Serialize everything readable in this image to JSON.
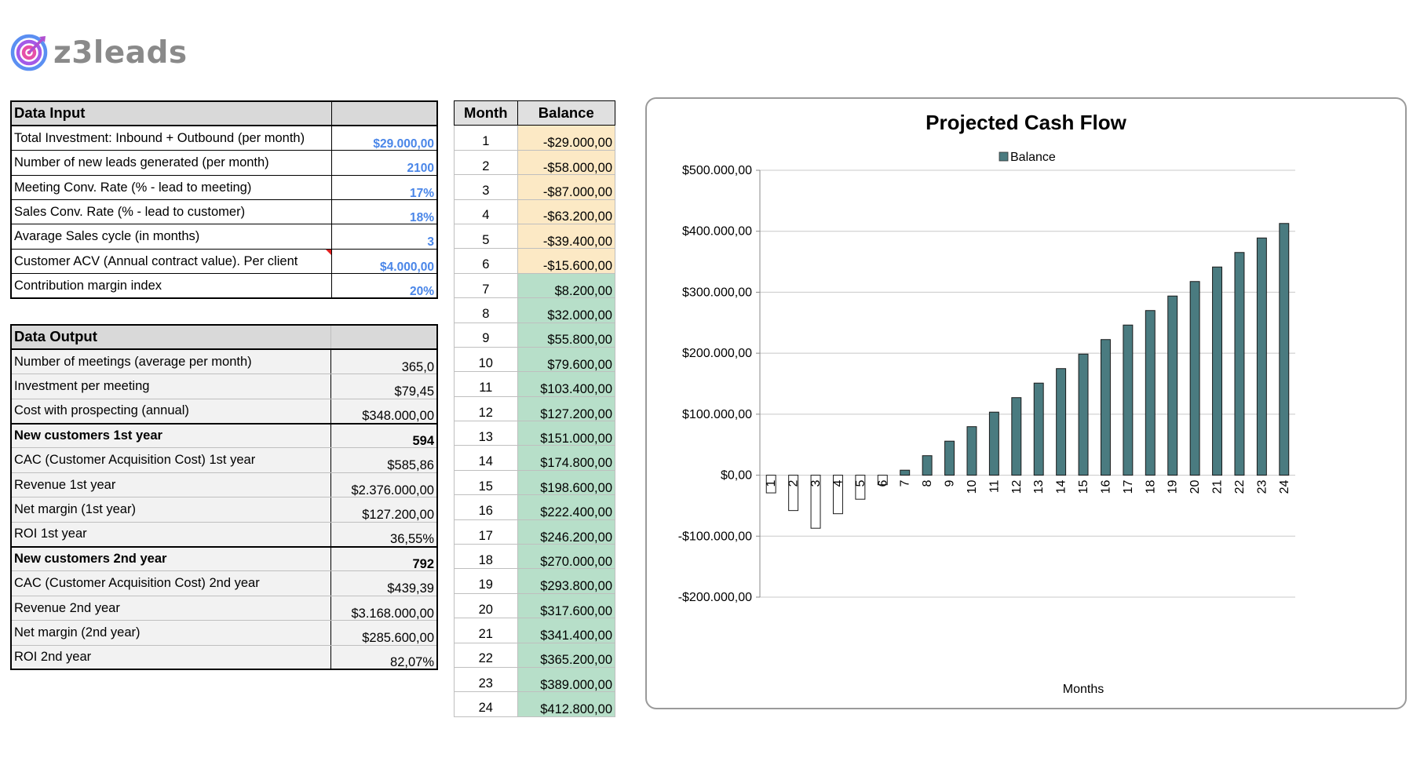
{
  "logo": {
    "text": "z3leads",
    "icon": "target-icon"
  },
  "data_input": {
    "header": "Data Input",
    "rows": [
      {
        "label": "Total Investment: Inbound + Outbound (per month)",
        "value": "$29.000,00"
      },
      {
        "label": "Number of new leads generated (per month)",
        "value": "2100"
      },
      {
        "label": "Meeting Conv. Rate (% - lead to meeting)",
        "value": "17%"
      },
      {
        "label": "Sales Conv. Rate (% - lead to customer)",
        "value": "18%"
      },
      {
        "label": "Avarage Sales cycle (in months)",
        "value": "3"
      },
      {
        "label": "Customer ACV (Annual contract value). Per client",
        "value": "$4.000,00"
      },
      {
        "label": "Contribution margin index",
        "value": "20%"
      }
    ]
  },
  "data_output": {
    "header": "Data Output",
    "rows": [
      {
        "label": "Number of meetings (average per month)",
        "value": "365,0"
      },
      {
        "label": "Investment per meeting",
        "value": "$79,45"
      },
      {
        "label": "Cost with prospecting (annual)",
        "value": "$348.000,00"
      },
      {
        "label": "New customers 1st year",
        "value": "594"
      },
      {
        "label": "CAC (Customer Acquisition Cost) 1st year",
        "value": "$585,86"
      },
      {
        "label": "Revenue 1st year",
        "value": "$2.376.000,00"
      },
      {
        "label": "Net margin (1st year)",
        "value": "$127.200,00"
      },
      {
        "label": "ROI 1st year",
        "value": "36,55%"
      },
      {
        "label": "New customers 2nd year",
        "value": "792"
      },
      {
        "label": "CAC (Customer Acquisition Cost) 2nd year",
        "value": "$439,39"
      },
      {
        "label": "Revenue 2nd year",
        "value": "$3.168.000,00"
      },
      {
        "label": "Net margin (2nd year)",
        "value": "$285.600,00"
      },
      {
        "label": "ROI 2nd year",
        "value": "82,07%"
      }
    ]
  },
  "balance_table": {
    "headers": [
      "Month",
      "Balance"
    ],
    "rows": [
      {
        "month": "1",
        "balance": "-$29.000,00"
      },
      {
        "month": "2",
        "balance": "-$58.000,00"
      },
      {
        "month": "3",
        "balance": "-$87.000,00"
      },
      {
        "month": "4",
        "balance": "-$63.200,00"
      },
      {
        "month": "5",
        "balance": "-$39.400,00"
      },
      {
        "month": "6",
        "balance": "-$15.600,00"
      },
      {
        "month": "7",
        "balance": "$8.200,00"
      },
      {
        "month": "8",
        "balance": "$32.000,00"
      },
      {
        "month": "9",
        "balance": "$55.800,00"
      },
      {
        "month": "10",
        "balance": "$79.600,00"
      },
      {
        "month": "11",
        "balance": "$103.400,00"
      },
      {
        "month": "12",
        "balance": "$127.200,00"
      },
      {
        "month": "13",
        "balance": "$151.000,00"
      },
      {
        "month": "14",
        "balance": "$174.800,00"
      },
      {
        "month": "15",
        "balance": "$198.600,00"
      },
      {
        "month": "16",
        "balance": "$222.400,00"
      },
      {
        "month": "17",
        "balance": "$246.200,00"
      },
      {
        "month": "18",
        "balance": "$270.000,00"
      },
      {
        "month": "19",
        "balance": "$293.800,00"
      },
      {
        "month": "20",
        "balance": "$317.600,00"
      },
      {
        "month": "21",
        "balance": "$341.400,00"
      },
      {
        "month": "22",
        "balance": "$365.200,00"
      },
      {
        "month": "23",
        "balance": "$389.000,00"
      },
      {
        "month": "24",
        "balance": "$412.800,00"
      }
    ]
  },
  "colors": {
    "positive_bar": "#4a7b80",
    "negative_bar": "#ffffff",
    "negative_cell": "#fce9c5",
    "positive_cell": "#b7dfc9",
    "input_value": "#4a86e8"
  },
  "chart_data": {
    "type": "bar",
    "title": "Projected Cash Flow",
    "xlabel": "Months",
    "ylabel": "",
    "legend": {
      "entries": [
        "Balance"
      ],
      "position": "top"
    },
    "grid": true,
    "categories": [
      "1",
      "2",
      "3",
      "4",
      "5",
      "6",
      "7",
      "8",
      "9",
      "10",
      "11",
      "12",
      "13",
      "14",
      "15",
      "16",
      "17",
      "18",
      "19",
      "20",
      "21",
      "22",
      "23",
      "24"
    ],
    "series": [
      {
        "name": "Balance",
        "values": [
          -29000,
          -58000,
          -87000,
          -63200,
          -39400,
          -15600,
          8200,
          32000,
          55800,
          79600,
          103400,
          127200,
          151000,
          174800,
          198600,
          222400,
          246200,
          270000,
          293800,
          317600,
          341400,
          365200,
          389000,
          412800
        ]
      }
    ],
    "ylim": [
      -200000,
      500000
    ],
    "yticks": [
      500000,
      400000,
      300000,
      200000,
      100000,
      0,
      -100000,
      -200000
    ],
    "ytick_labels": [
      "$500.000,00",
      "$400.000,00",
      "$300.000,00",
      "$200.000,00",
      "$100.000,00",
      "$0,00",
      "-$100.000,00",
      "-$200.000,00"
    ]
  }
}
